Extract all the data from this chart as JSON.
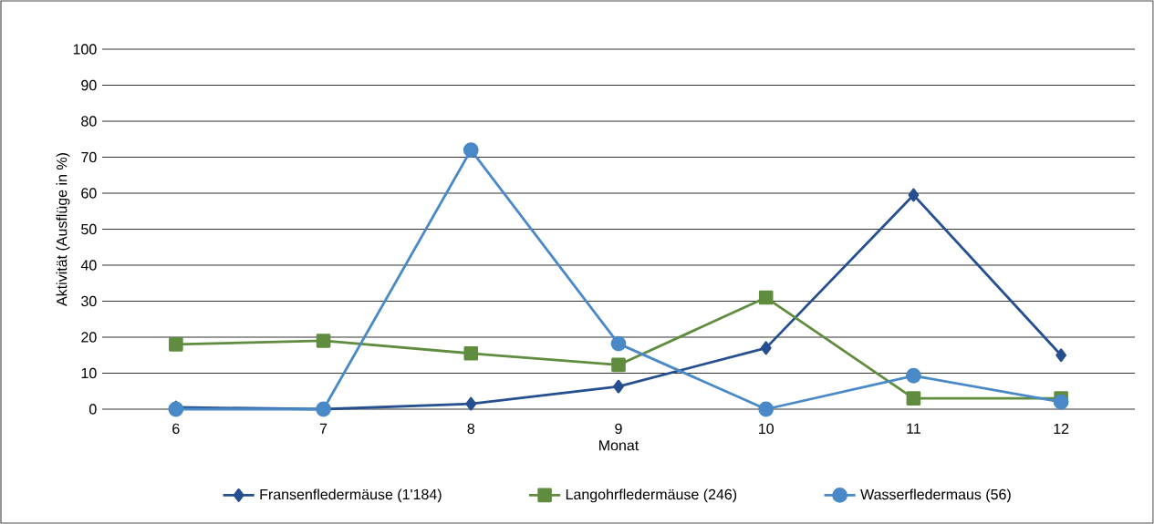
{
  "chart_data": {
    "type": "line",
    "xlabel": "Monat",
    "ylabel": "Aktivität (Ausflüge in %)",
    "categories": [
      "6",
      "7",
      "8",
      "9",
      "10",
      "11",
      "12"
    ],
    "series": [
      {
        "name": "Fransenfledermäuse (1'184)",
        "color": "#264f8f",
        "marker": "diamond",
        "values": [
          0.5,
          0,
          1.5,
          6.3,
          17,
          59.5,
          15
        ]
      },
      {
        "name": "Langohrfledermäuse (246)",
        "color": "#5f8c3e",
        "marker": "square",
        "values": [
          18,
          19,
          15.5,
          12.3,
          31,
          3,
          3
        ]
      },
      {
        "name": "Wasserfledermaus (56)",
        "color": "#4a89c8",
        "marker": "circle",
        "values": [
          0,
          0,
          72,
          18.2,
          0,
          9.3,
          2
        ]
      }
    ],
    "ylim": [
      0,
      100
    ],
    "yticks": [
      0,
      10,
      20,
      30,
      40,
      50,
      60,
      70,
      80,
      90,
      100
    ],
    "grid": "y",
    "legend": "bottom",
    "line_style": "solid"
  }
}
